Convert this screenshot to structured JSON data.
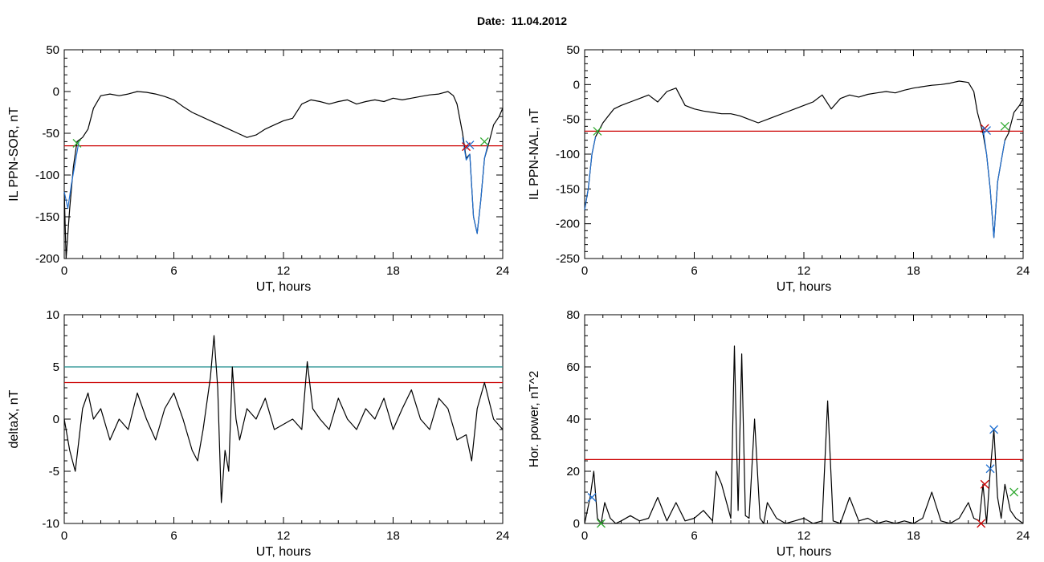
{
  "header": {
    "title": "Date:  11.04.2012"
  },
  "chart_data": [
    {
      "type": "line",
      "panel": "top-left",
      "xlabel": "UT, hours",
      "ylabel": "IL PPN-SOR, nT",
      "xlim": [
        0,
        24
      ],
      "ylim": [
        -200,
        50
      ],
      "xticks": [
        0,
        6,
        12,
        18,
        24
      ],
      "yticks": [
        -200,
        -150,
        -100,
        -50,
        0,
        50
      ],
      "threshold": {
        "value": -65,
        "color": "#cc0000"
      },
      "series": [
        {
          "color": "#000000",
          "x": [
            0,
            0.1,
            0.3,
            0.5,
            0.7,
            1,
            1.3,
            1.6,
            2,
            2.5,
            3,
            3.5,
            4,
            4.5,
            5,
            5.5,
            6,
            6.5,
            7,
            7.5,
            8,
            8.5,
            9,
            9.5,
            10,
            10.5,
            11,
            11.5,
            12,
            12.5,
            13,
            13.5,
            14,
            14.5,
            15,
            15.5,
            16,
            16.5,
            17,
            17.5,
            18,
            18.5,
            19,
            19.5,
            20,
            20.5,
            21,
            21.3,
            21.5,
            21.8,
            22,
            22.2,
            22.4,
            22.6,
            22.8,
            23,
            23.2,
            23.5,
            23.8,
            24
          ],
          "y": [
            -120,
            -200,
            -140,
            -90,
            -60,
            -55,
            -45,
            -20,
            -5,
            -3,
            -5,
            -3,
            0,
            -1,
            -3,
            -6,
            -10,
            -18,
            -25,
            -30,
            -35,
            -40,
            -45,
            -50,
            -55,
            -52,
            -45,
            -40,
            -35,
            -32,
            -15,
            -10,
            -12,
            -15,
            -12,
            -10,
            -15,
            -12,
            -10,
            -12,
            -8,
            -10,
            -8,
            -6,
            -4,
            -3,
            0,
            -5,
            -15,
            -50,
            -80,
            -75,
            -150,
            -170,
            -130,
            -80,
            -65,
            -40,
            -30,
            -20
          ]
        },
        {
          "color": "#1f6fd1",
          "x": [
            0,
            0.2,
            0.4,
            0.6,
            0.8
          ],
          "y": [
            -120,
            -140,
            -110,
            -85,
            -60
          ]
        },
        {
          "color": "#1f6fd1",
          "x": [
            21.8,
            22,
            22.2,
            22.4,
            22.6,
            22.8,
            23,
            23.2
          ],
          "y": [
            -55,
            -82,
            -75,
            -150,
            -170,
            -130,
            -80,
            -62
          ]
        }
      ],
      "markers": [
        {
          "x": 0.7,
          "y": -62,
          "color": "#33aa33",
          "symbol": "x"
        },
        {
          "x": 22.0,
          "y": -66,
          "color": "#cc0000",
          "symbol": "x"
        },
        {
          "x": 22.2,
          "y": -64,
          "color": "#1f6fd1",
          "symbol": "x"
        },
        {
          "x": 23.0,
          "y": -60,
          "color": "#33aa33",
          "symbol": "x"
        }
      ]
    },
    {
      "type": "line",
      "panel": "top-right",
      "xlabel": "UT, hours",
      "ylabel": "IL PPN-NAL, nT",
      "xlim": [
        0,
        24
      ],
      "ylim": [
        -250,
        50
      ],
      "xticks": [
        0,
        6,
        12,
        18,
        24
      ],
      "yticks": [
        -250,
        -200,
        -150,
        -100,
        -50,
        0,
        50
      ],
      "threshold": {
        "value": -67,
        "color": "#cc0000"
      },
      "series": [
        {
          "color": "#000000",
          "x": [
            0,
            0.2,
            0.4,
            0.6,
            0.8,
            1,
            1.3,
            1.6,
            2,
            2.5,
            3,
            3.5,
            4,
            4.5,
            5,
            5.5,
            6,
            6.5,
            7,
            7.5,
            8,
            8.5,
            9,
            9.5,
            10,
            10.5,
            11,
            11.5,
            12,
            12.5,
            13,
            13.5,
            14,
            14.5,
            15,
            15.5,
            16,
            16.5,
            17,
            17.5,
            18,
            18.5,
            19,
            19.5,
            20,
            20.5,
            21,
            21.3,
            21.5,
            21.8,
            22,
            22.2,
            22.4,
            22.6,
            22.8,
            23,
            23.2,
            23.5,
            23.8,
            24
          ],
          "y": [
            -180,
            -150,
            -100,
            -75,
            -65,
            -55,
            -45,
            -35,
            -30,
            -25,
            -20,
            -15,
            -25,
            -10,
            -5,
            -30,
            -35,
            -38,
            -40,
            -42,
            -42,
            -45,
            -50,
            -55,
            -50,
            -45,
            -40,
            -35,
            -30,
            -25,
            -15,
            -35,
            -20,
            -15,
            -18,
            -14,
            -12,
            -10,
            -12,
            -8,
            -5,
            -3,
            -1,
            0,
            2,
            5,
            3,
            -10,
            -40,
            -70,
            -100,
            -150,
            -220,
            -140,
            -110,
            -80,
            -70,
            -40,
            -30,
            -20
          ]
        },
        {
          "color": "#1f6fd1",
          "x": [
            0,
            0.2,
            0.4,
            0.6
          ],
          "y": [
            -180,
            -150,
            -100,
            -75
          ]
        },
        {
          "color": "#1f6fd1",
          "x": [
            21.8,
            22,
            22.2,
            22.4,
            22.6,
            22.8,
            23
          ],
          "y": [
            -62,
            -100,
            -150,
            -220,
            -140,
            -110,
            -80
          ]
        }
      ],
      "markers": [
        {
          "x": 0.7,
          "y": -67,
          "color": "#33aa33",
          "symbol": "x"
        },
        {
          "x": 21.9,
          "y": -63,
          "color": "#cc0000",
          "symbol": "x"
        },
        {
          "x": 22.0,
          "y": -66,
          "color": "#1f6fd1",
          "symbol": "x"
        },
        {
          "x": 23.0,
          "y": -60,
          "color": "#33aa33",
          "symbol": "x"
        }
      ]
    },
    {
      "type": "line",
      "panel": "bottom-left",
      "xlabel": "UT, hours",
      "ylabel": "deltaX, nT",
      "xlim": [
        0,
        24
      ],
      "ylim": [
        -10,
        10
      ],
      "xticks": [
        0,
        6,
        12,
        18,
        24
      ],
      "yticks": [
        -10,
        -5,
        0,
        5,
        10
      ],
      "thresholds": [
        {
          "value": 5,
          "color": "#1a8c8c"
        },
        {
          "value": 3.5,
          "color": "#cc0000"
        }
      ],
      "series": [
        {
          "color": "#000000",
          "x": [
            0,
            0.3,
            0.6,
            1,
            1.3,
            1.6,
            2,
            2.5,
            3,
            3.5,
            4,
            4.5,
            5,
            5.5,
            6,
            6.5,
            7,
            7.3,
            7.6,
            8,
            8.2,
            8.4,
            8.6,
            8.8,
            9,
            9.2,
            9.4,
            9.6,
            10,
            10.5,
            11,
            11.5,
            12,
            12.5,
            13,
            13.3,
            13.6,
            14,
            14.5,
            15,
            15.5,
            16,
            16.5,
            17,
            17.5,
            18,
            18.5,
            19,
            19.5,
            20,
            20.5,
            21,
            21.5,
            22,
            22.3,
            22.6,
            23,
            23.5,
            24
          ],
          "y": [
            0,
            -3,
            -5,
            1,
            2.5,
            0,
            1,
            -2,
            0,
            -1,
            2.5,
            0,
            -2,
            1,
            2.5,
            0,
            -3,
            -4,
            -1,
            4,
            8,
            3,
            -8,
            -3,
            -5,
            5,
            0,
            -2,
            1,
            0,
            2,
            -1,
            -0.5,
            0,
            -1,
            5.5,
            1,
            0,
            -1,
            2,
            0,
            -1,
            1,
            0,
            2,
            -1,
            1,
            2.8,
            0,
            -1,
            2,
            1,
            -2,
            -1.5,
            -4,
            1,
            3.5,
            0,
            -1
          ]
        }
      ]
    },
    {
      "type": "line",
      "panel": "bottom-right",
      "xlabel": "UT, hours",
      "ylabel": "Hor. power, nT^2",
      "xlim": [
        0,
        24
      ],
      "ylim": [
        0,
        80
      ],
      "xticks": [
        0,
        6,
        12,
        18,
        24
      ],
      "yticks": [
        0,
        20,
        40,
        60,
        80
      ],
      "threshold": {
        "value": 24.5,
        "color": "#cc0000"
      },
      "series": [
        {
          "color": "#000000",
          "x": [
            0,
            0.3,
            0.5,
            0.7,
            0.9,
            1.1,
            1.4,
            1.7,
            2,
            2.5,
            3,
            3.5,
            4,
            4.5,
            5,
            5.5,
            6,
            6.5,
            7,
            7.2,
            7.5,
            8,
            8.2,
            8.4,
            8.6,
            8.8,
            9,
            9.3,
            9.6,
            9.8,
            10,
            10.5,
            11,
            11.5,
            12,
            12.5,
            13,
            13.3,
            13.6,
            14,
            14.5,
            15,
            15.5,
            16,
            16.5,
            17,
            17.5,
            18,
            18.5,
            19,
            19.5,
            20,
            20.5,
            21,
            21.3,
            21.6,
            21.8,
            22,
            22.2,
            22.4,
            22.6,
            22.8,
            23,
            23.3,
            23.6,
            24
          ],
          "y": [
            0,
            10,
            20,
            2,
            0,
            8,
            2,
            0,
            1,
            3,
            1,
            2,
            10,
            1,
            8,
            1,
            2,
            5,
            1,
            20,
            15,
            2,
            68,
            5,
            65,
            3,
            2,
            40,
            2,
            0,
            8,
            2,
            0,
            1,
            2,
            0,
            1,
            47,
            1,
            0,
            10,
            1,
            2,
            0,
            1,
            0,
            1,
            0,
            2,
            12,
            1,
            0,
            2,
            8,
            2,
            1,
            15,
            0,
            20,
            36,
            10,
            2,
            15,
            5,
            2,
            0
          ]
        }
      ],
      "markers": [
        {
          "x": 0.4,
          "y": 10,
          "color": "#1f6fd1",
          "symbol": "x"
        },
        {
          "x": 0.9,
          "y": 0,
          "color": "#33aa33",
          "symbol": "x"
        },
        {
          "x": 21.7,
          "y": 0,
          "color": "#cc0000",
          "symbol": "x"
        },
        {
          "x": 21.9,
          "y": 15,
          "color": "#cc0000",
          "symbol": "x"
        },
        {
          "x": 22.2,
          "y": 21,
          "color": "#1f6fd1",
          "symbol": "x"
        },
        {
          "x": 22.4,
          "y": 36,
          "color": "#1f6fd1",
          "symbol": "x"
        },
        {
          "x": 23.5,
          "y": 12,
          "color": "#33aa33",
          "symbol": "x"
        }
      ]
    }
  ]
}
